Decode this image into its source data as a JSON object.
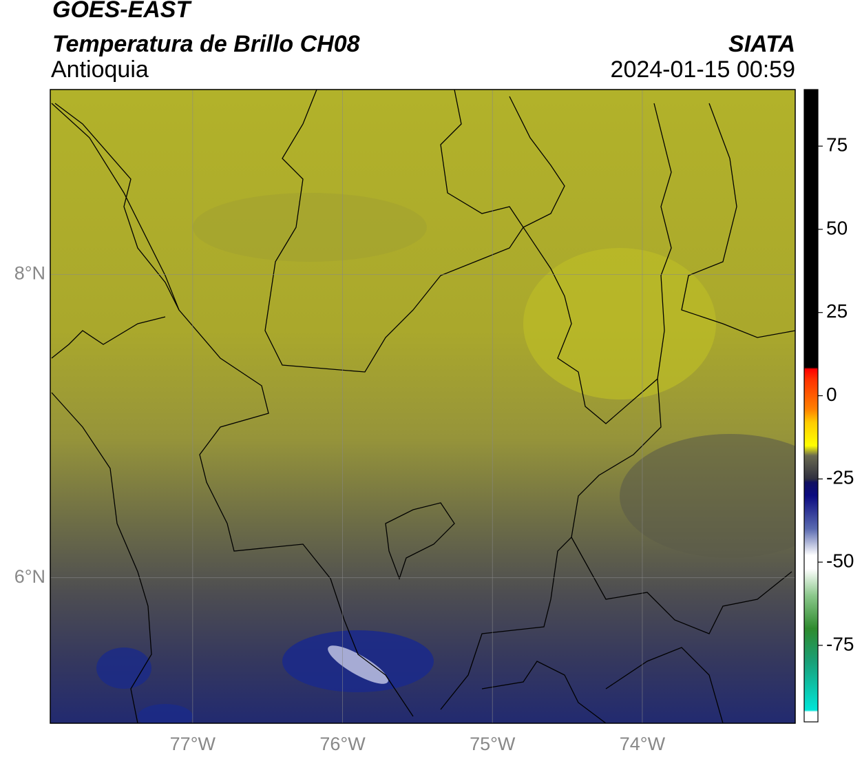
{
  "header": {
    "satellite": "GOES-EAST",
    "product": "Temperatura de Brillo CH08",
    "region": "Antioquia",
    "source": "SIATA",
    "datetime": "2024-01-15 00:59"
  },
  "map": {
    "xlim": [
      -77.95,
      -72.98
    ],
    "ylim": [
      5.04,
      9.22
    ],
    "xticks": [
      {
        "value": -77,
        "label": "77°W"
      },
      {
        "value": -76,
        "label": "76°W"
      },
      {
        "value": -75,
        "label": "75°W"
      },
      {
        "value": -74,
        "label": "74°W"
      }
    ],
    "yticks": [
      {
        "value": 6,
        "label": "6°N"
      },
      {
        "value": 8,
        "label": "8°N"
      }
    ],
    "grid": true
  },
  "colorbar": {
    "lim": [
      -98,
      92
    ],
    "ticks": [
      -75,
      -50,
      -25,
      0,
      25,
      50,
      75
    ],
    "stops": [
      {
        "value": -98,
        "color": "#ffffff"
      },
      {
        "value": -95,
        "color": "#ffffff"
      },
      {
        "value": -94.5,
        "color": "#00e5d8"
      },
      {
        "value": -80,
        "color": "#1aa078"
      },
      {
        "value": -70,
        "color": "#2e8b2e"
      },
      {
        "value": -60,
        "color": "#8cc88c"
      },
      {
        "value": -52,
        "color": "#ffffff"
      },
      {
        "value": -48,
        "color": "#ffffff"
      },
      {
        "value": -40,
        "color": "#5a6ab0"
      },
      {
        "value": -30,
        "color": "#0a0a80"
      },
      {
        "value": -26,
        "color": "#101060"
      },
      {
        "value": -25,
        "color": "#303040"
      },
      {
        "value": -18,
        "color": "#6a6a50"
      },
      {
        "value": -15,
        "color": "#ffff00"
      },
      {
        "value": -8,
        "color": "#ffcc00"
      },
      {
        "value": -4,
        "color": "#ff8000"
      },
      {
        "value": 5,
        "color": "#ff3000"
      },
      {
        "value": 8,
        "color": "#ff0000"
      },
      {
        "value": 8.5,
        "color": "#000000"
      },
      {
        "value": 92,
        "color": "#000000"
      }
    ]
  }
}
